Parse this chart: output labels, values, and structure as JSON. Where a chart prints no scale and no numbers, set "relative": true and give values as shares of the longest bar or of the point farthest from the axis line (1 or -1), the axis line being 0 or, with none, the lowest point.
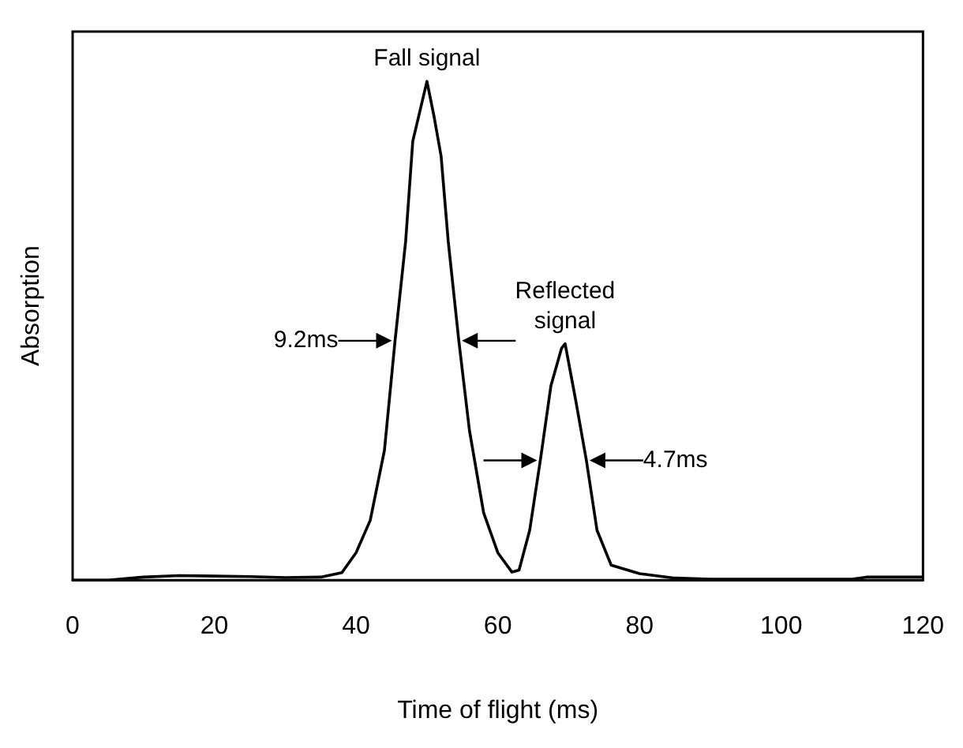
{
  "chart_data": {
    "type": "line",
    "relative": true,
    "xlabel": "Time of flight (ms)",
    "ylabel": "Absorption",
    "xlim": [
      0,
      120
    ],
    "xticks": [
      0,
      20,
      40,
      60,
      80,
      100,
      120
    ],
    "grid": false,
    "legend": false,
    "marker": "none",
    "line_style": "solid",
    "series": [
      {
        "color": "#000000",
        "x": [
          0,
          5,
          10,
          15,
          20,
          25,
          30,
          35,
          38,
          40,
          42,
          44,
          45.5,
          47,
          48,
          49,
          50,
          51,
          52,
          53,
          54.5,
          56,
          58,
          60,
          62,
          63,
          64.5,
          66,
          67.5,
          69,
          69.5,
          71,
          72.5,
          74,
          76,
          80,
          85,
          90,
          100,
          110,
          112,
          120
        ],
        "values": [
          0,
          0,
          0.006,
          0.009,
          0.008,
          0.007,
          0.005,
          0.006,
          0.015,
          0.055,
          0.12,
          0.26,
          0.48,
          0.68,
          0.88,
          0.94,
          1.0,
          0.93,
          0.85,
          0.68,
          0.48,
          0.3,
          0.135,
          0.055,
          0.016,
          0.02,
          0.1,
          0.24,
          0.39,
          0.465,
          0.474,
          0.36,
          0.24,
          0.1,
          0.03,
          0.013,
          0.004,
          0.002,
          0.002,
          0.002,
          0.006,
          0.006
        ]
      }
    ],
    "annotations": [
      {
        "text": "Fall signal",
        "x": 50,
        "y": 1.0
      },
      {
        "text": "Reflected signal",
        "x": 69.5,
        "y": 0.474
      },
      {
        "text": "9.2ms",
        "x": 45.5,
        "y": 0.48
      },
      {
        "text": "4.7ms",
        "x": 72.5,
        "y": 0.24
      }
    ]
  }
}
